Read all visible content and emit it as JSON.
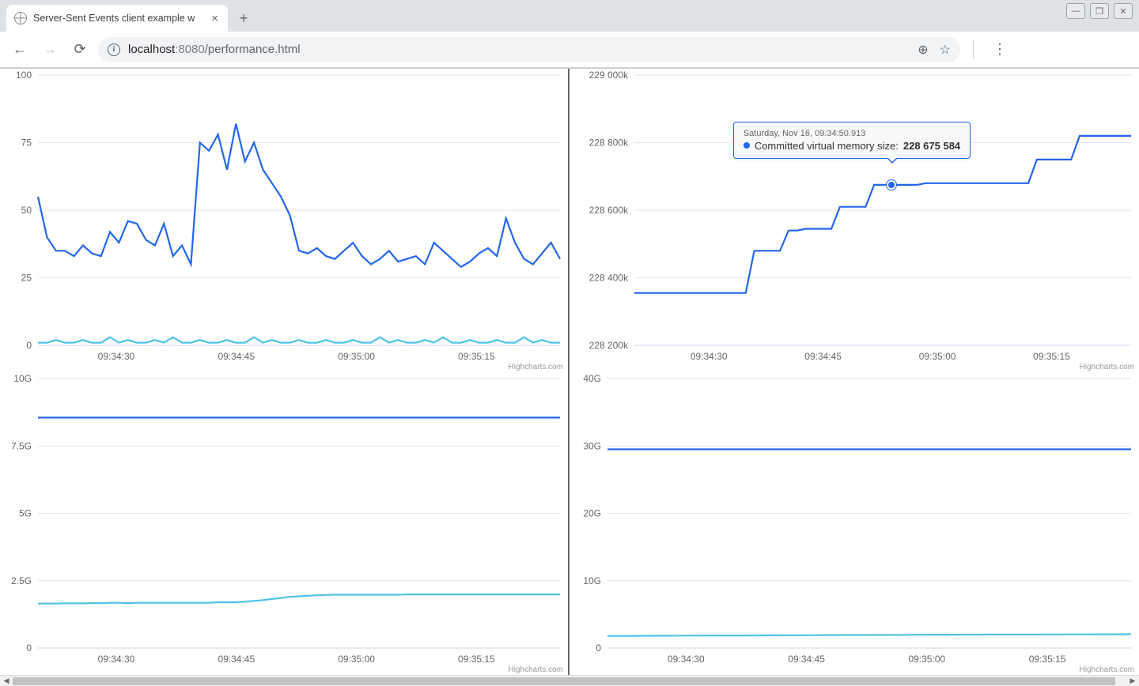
{
  "browser": {
    "tab_title": "Server-Sent Events client example w",
    "url_host": "localhost",
    "url_port": ":8080",
    "url_path": "/performance.html"
  },
  "charts": {
    "credits_label": "Highcharts.com",
    "x_ticks": [
      "09:34:30",
      "09:34:45",
      "09:35:00",
      "09:35:15"
    ],
    "top_left": {
      "type": "line",
      "y_ticks": [
        "0",
        "25",
        "50",
        "75",
        "100"
      ],
      "ylim": [
        0,
        100
      ],
      "series": [
        {
          "name": "cpu_main",
          "color": "#2466eb",
          "width": 2.2,
          "values": [
            55,
            40,
            35,
            35,
            33,
            37,
            34,
            33,
            42,
            38,
            46,
            45,
            39,
            37,
            45,
            33,
            37,
            30,
            75,
            72,
            78,
            65,
            82,
            68,
            75,
            65,
            60,
            55,
            48,
            35,
            34,
            36,
            33,
            32,
            35,
            38,
            33,
            30,
            32,
            35,
            31,
            32,
            33,
            30,
            38,
            35,
            32,
            29,
            31,
            34,
            36,
            33,
            47,
            38,
            32,
            30,
            34,
            38,
            32
          ]
        },
        {
          "name": "cpu_secondary",
          "color": "#4fc3e8",
          "width": 2.2,
          "values": [
            1,
            1,
            2,
            1,
            1,
            2,
            1,
            1,
            3,
            1,
            2,
            1,
            1,
            2,
            1,
            3,
            1,
            1,
            2,
            1,
            1,
            2,
            1,
            1,
            3,
            1,
            2,
            1,
            1,
            2,
            1,
            1,
            2,
            1,
            1,
            2,
            1,
            1,
            3,
            1,
            2,
            1,
            1,
            2,
            1,
            3,
            1,
            1,
            2,
            1,
            1,
            2,
            1,
            1,
            3,
            1,
            2,
            1,
            1
          ]
        }
      ],
      "colors": {
        "grid": "#e6e6e6",
        "axis": "#ccd6eb",
        "bg": "#ffffff"
      }
    },
    "bottom_left": {
      "type": "line",
      "y_ticks": [
        "0",
        "2.5G",
        "5G",
        "7.5G",
        "10G"
      ],
      "ylim": [
        0,
        10
      ],
      "series": [
        {
          "name": "mem_total",
          "color": "#2466eb",
          "width": 2.2,
          "values": [
            8.55,
            8.55,
            8.55,
            8.55,
            8.55,
            8.55,
            8.55,
            8.55,
            8.55,
            8.55,
            8.55,
            8.55,
            8.55,
            8.55,
            8.55,
            8.55,
            8.55,
            8.55,
            8.55,
            8.55,
            8.55,
            8.55,
            8.55,
            8.55,
            8.55,
            8.55,
            8.55,
            8.55,
            8.55,
            8.55,
            8.55,
            8.55,
            8.55,
            8.55,
            8.55,
            8.55,
            8.55,
            8.55,
            8.55,
            8.55,
            8.55,
            8.55,
            8.55,
            8.55,
            8.55,
            8.55,
            8.55,
            8.55,
            8.55,
            8.55,
            8.55,
            8.55,
            8.55,
            8.55,
            8.55,
            8.55,
            8.55,
            8.55,
            8.55
          ]
        },
        {
          "name": "mem_used",
          "color": "#4fc3e8",
          "width": 2.2,
          "values": [
            1.65,
            1.65,
            1.65,
            1.66,
            1.66,
            1.66,
            1.67,
            1.67,
            1.68,
            1.68,
            1.67,
            1.68,
            1.68,
            1.68,
            1.68,
            1.68,
            1.68,
            1.68,
            1.68,
            1.68,
            1.7,
            1.7,
            1.7,
            1.72,
            1.75,
            1.78,
            1.82,
            1.86,
            1.9,
            1.92,
            1.94,
            1.96,
            1.97,
            1.98,
            1.98,
            1.98,
            1.98,
            1.98,
            1.98,
            1.98,
            1.98,
            1.99,
            1.99,
            1.99,
            1.99,
            1.99,
            1.99,
            1.99,
            1.99,
            1.99,
            1.99,
            1.99,
            1.99,
            1.99,
            1.99,
            1.99,
            1.99,
            1.99,
            1.99
          ]
        }
      ]
    },
    "top_right": {
      "type": "line",
      "y_ticks": [
        "228 200k",
        "228 400k",
        "228 600k",
        "228 800k",
        "229 000k"
      ],
      "ylim": [
        228200,
        229000
      ],
      "series": [
        {
          "name": "committed_vm",
          "color": "#2466eb",
          "width": 2.2,
          "values": [
            228355,
            228355,
            228355,
            228355,
            228355,
            228355,
            228355,
            228355,
            228355,
            228355,
            228355,
            228355,
            228355,
            228355,
            228480,
            228480,
            228480,
            228480,
            228540,
            228540,
            228545,
            228545,
            228545,
            228545,
            228610,
            228610,
            228610,
            228610,
            228675,
            228675,
            228675,
            228675,
            228675,
            228675,
            228680,
            228680,
            228680,
            228680,
            228680,
            228680,
            228680,
            228680,
            228680,
            228680,
            228680,
            228680,
            228680,
            228750,
            228750,
            228750,
            228750,
            228750,
            228820,
            228820,
            228820,
            228820,
            228820,
            228820,
            228820
          ]
        }
      ],
      "tooltip": {
        "date": "Saturday, Nov 16, 09:34:50.913",
        "series_label": "Committed virtual memory size:",
        "value": "228 675 584",
        "marker_color": "#2466eb",
        "point_index": 30
      }
    },
    "bottom_right": {
      "type": "line",
      "y_ticks": [
        "0",
        "10G",
        "20G",
        "30G",
        "40G"
      ],
      "ylim": [
        0,
        40
      ],
      "series": [
        {
          "name": "swap_total",
          "color": "#2466eb",
          "width": 2.2,
          "values": [
            29.5,
            29.5,
            29.5,
            29.5,
            29.5,
            29.5,
            29.5,
            29.5,
            29.5,
            29.5,
            29.5,
            29.5,
            29.5,
            29.5,
            29.5,
            29.5,
            29.5,
            29.5,
            29.5,
            29.5,
            29.5,
            29.5,
            29.5,
            29.5,
            29.5,
            29.5,
            29.5,
            29.5,
            29.5,
            29.5,
            29.5,
            29.5,
            29.5,
            29.5,
            29.5,
            29.5,
            29.5,
            29.5,
            29.5,
            29.5,
            29.5,
            29.5,
            29.5,
            29.5,
            29.5,
            29.5,
            29.5,
            29.5,
            29.5,
            29.5,
            29.5,
            29.5,
            29.5,
            29.5,
            29.5,
            29.5,
            29.5,
            29.5,
            29.5
          ]
        },
        {
          "name": "swap_used",
          "color": "#4fc3e8",
          "width": 2.2,
          "values": [
            1.8,
            1.8,
            1.8,
            1.81,
            1.82,
            1.82,
            1.83,
            1.83,
            1.84,
            1.84,
            1.85,
            1.85,
            1.86,
            1.86,
            1.87,
            1.87,
            1.88,
            1.88,
            1.89,
            1.89,
            1.9,
            1.9,
            1.91,
            1.91,
            1.92,
            1.92,
            1.93,
            1.93,
            1.94,
            1.94,
            1.95,
            1.95,
            1.96,
            1.96,
            1.97,
            1.97,
            1.98,
            1.98,
            1.98,
            1.99,
            1.99,
            1.99,
            2.0,
            2.0,
            2.0,
            2.01,
            2.01,
            2.01,
            2.02,
            2.02,
            2.02,
            2.03,
            2.03,
            2.03,
            2.04,
            2.04,
            2.04,
            2.05,
            2.05
          ]
        }
      ]
    }
  }
}
